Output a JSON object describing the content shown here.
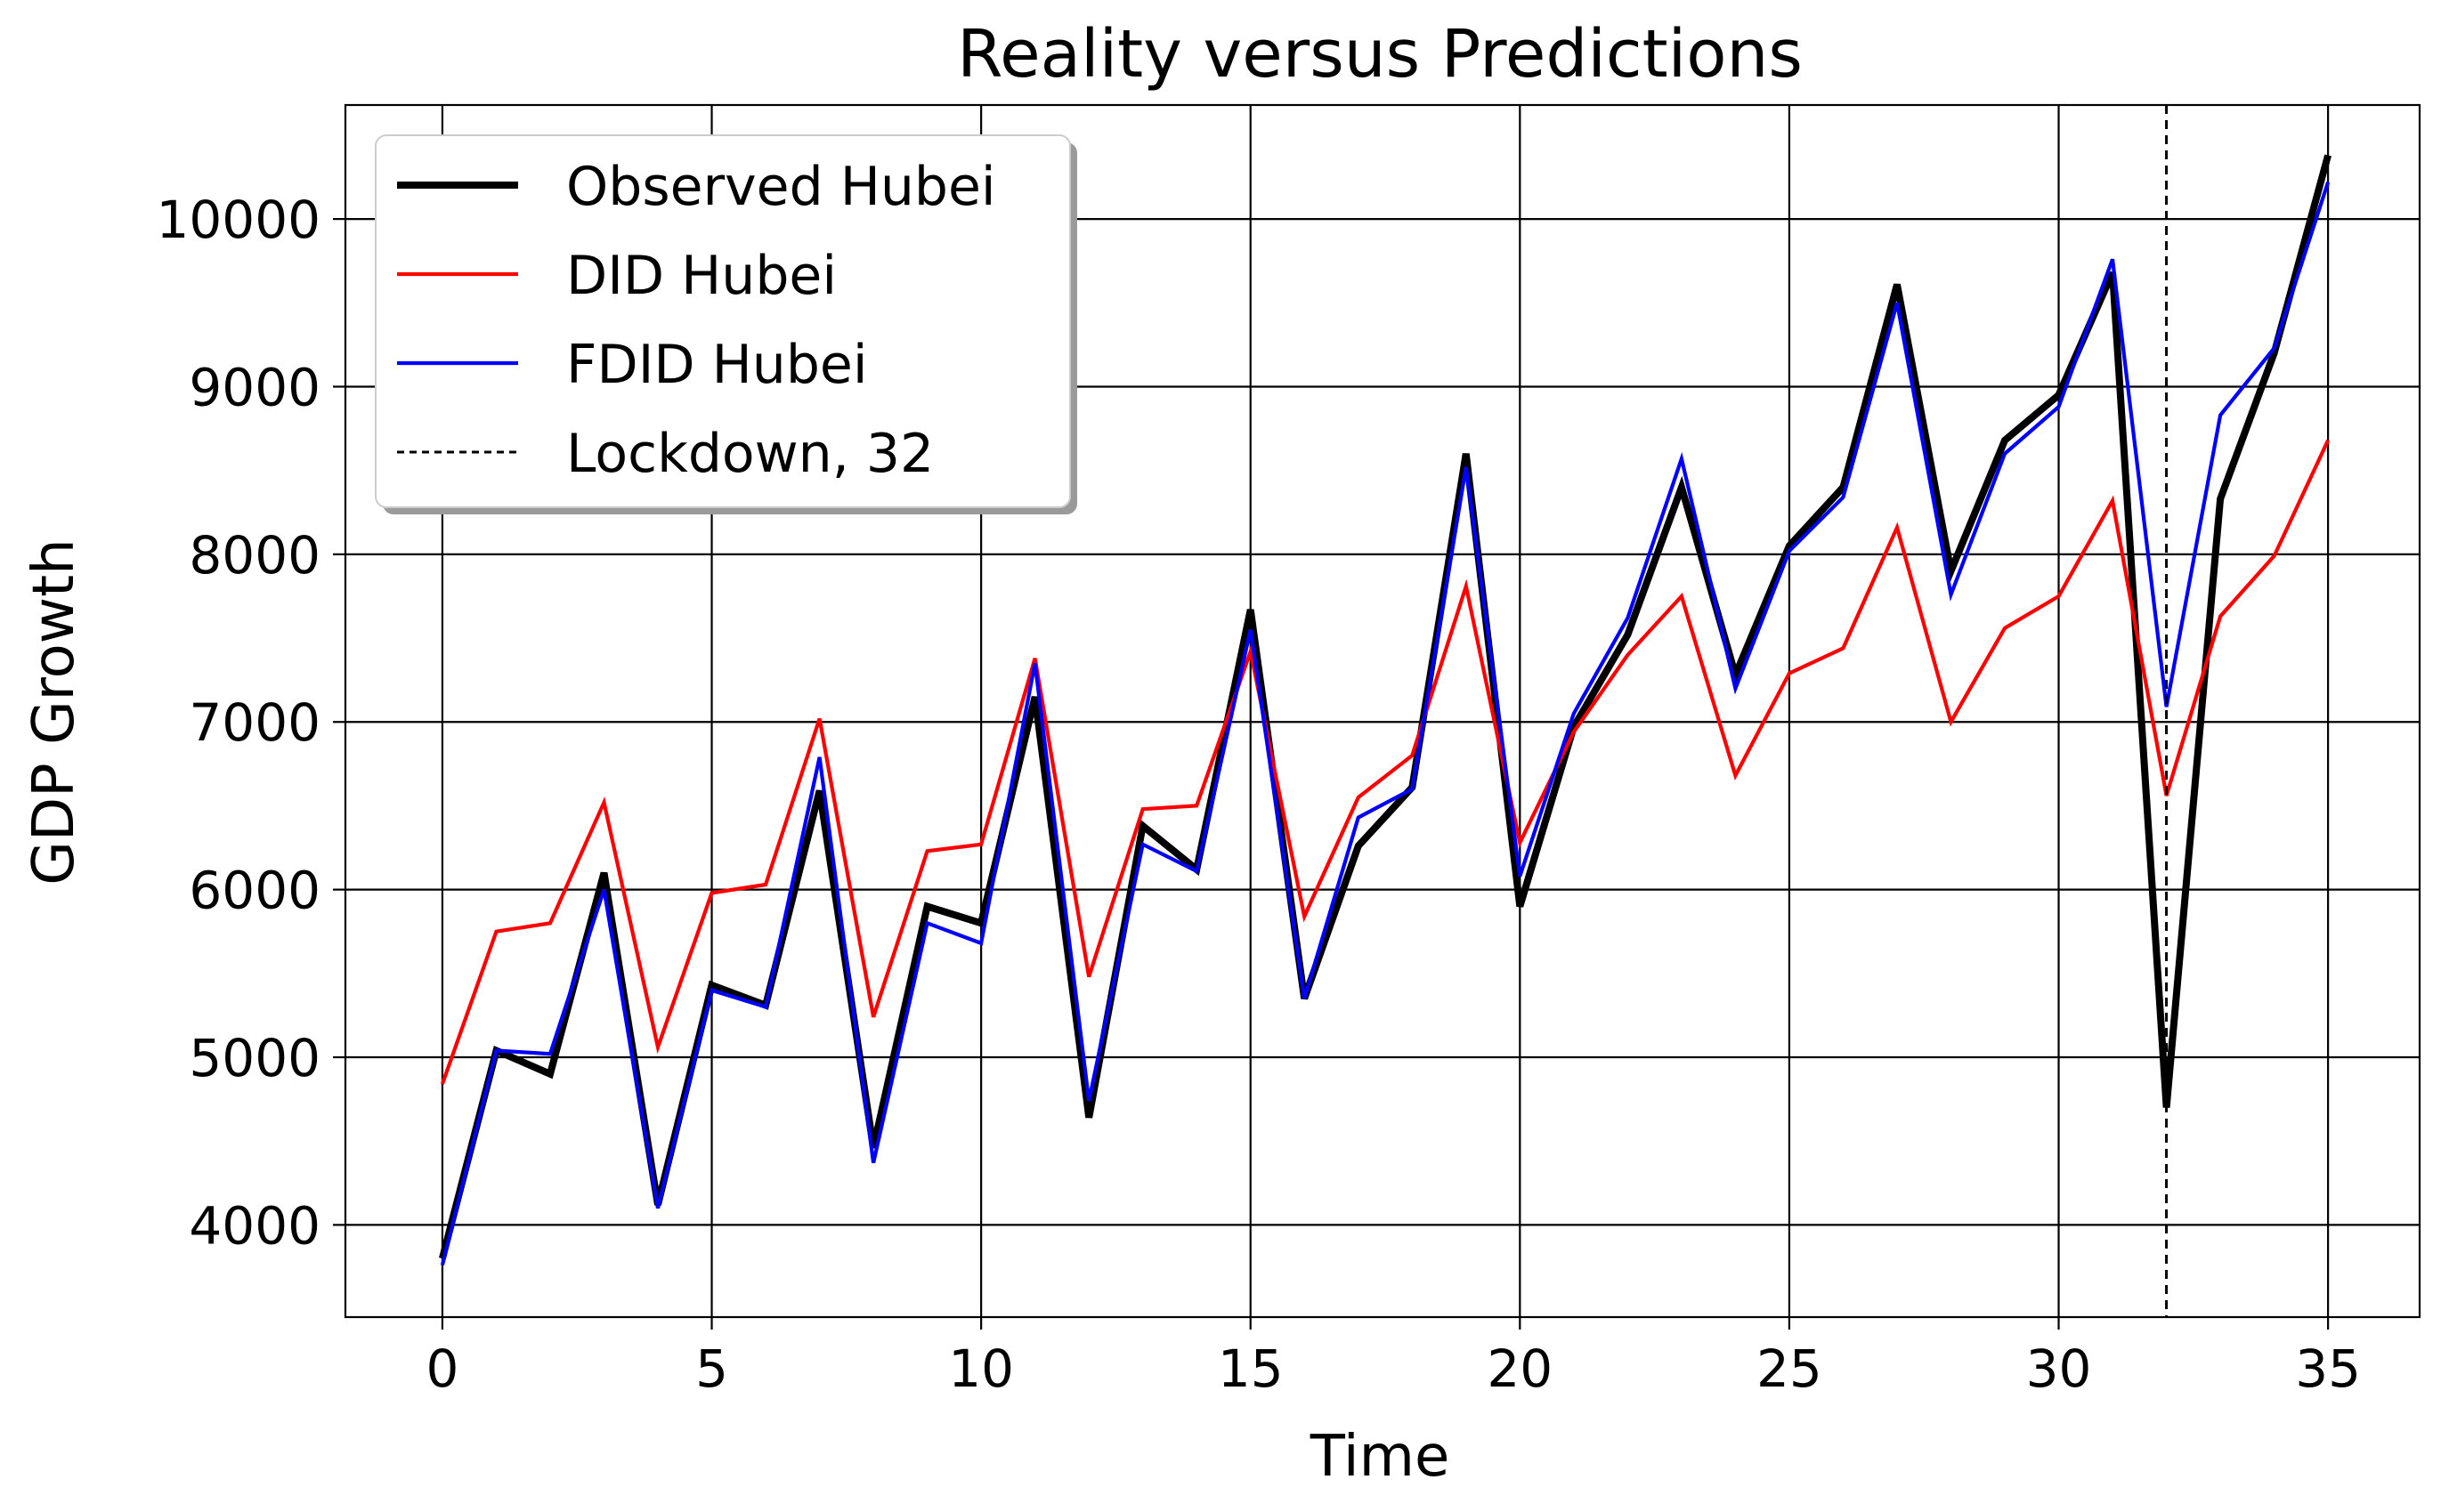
{
  "chart_data": {
    "type": "line",
    "title": "Reality versus Predictions",
    "xlabel": "Time",
    "ylabel": "GDP Growth",
    "xlim": [
      -1.8,
      36.7
    ],
    "ylim": [
      3450,
      10680
    ],
    "x_ticks": [
      0,
      5,
      10,
      15,
      20,
      25,
      30,
      35
    ],
    "y_ticks": [
      4000,
      5000,
      6000,
      7000,
      8000,
      9000,
      10000
    ],
    "grid": true,
    "legend_position": "top-left",
    "x": [
      0,
      1,
      2,
      3,
      4,
      5,
      6,
      7,
      8,
      9,
      10,
      11,
      12,
      13,
      14,
      15,
      16,
      17,
      18,
      19,
      20,
      21,
      22,
      23,
      24,
      25,
      26,
      27,
      28,
      29,
      30,
      31,
      32,
      33,
      34,
      35
    ],
    "series": [
      {
        "name": "Observed Hubei",
        "color": "#000000",
        "style": "solid-thick",
        "values": [
          3800,
          5040,
          4900,
          6100,
          4120,
          5430,
          5310,
          6590,
          4460,
          5900,
          5800,
          7150,
          4640,
          6380,
          6120,
          7670,
          5350,
          6260,
          6610,
          8600,
          5900,
          6970,
          7520,
          8400,
          7280,
          8050,
          8400,
          9610,
          7900,
          8680,
          8950,
          9680,
          4700,
          8330,
          9200,
          10380
        ]
      },
      {
        "name": "DID Hubei",
        "color": "#ff0000",
        "style": "solid",
        "values": [
          4840,
          5750,
          5800,
          6520,
          5060,
          5980,
          6030,
          7020,
          5240,
          6230,
          6270,
          7380,
          5480,
          6480,
          6500,
          7420,
          5840,
          6550,
          6800,
          7810,
          6280,
          6940,
          7400,
          7750,
          6680,
          7290,
          7440,
          8160,
          7000,
          7560,
          7750,
          8320,
          6560,
          7630,
          7990,
          8680
        ]
      },
      {
        "name": "FDID Hubei",
        "color": "#0000ff",
        "style": "solid",
        "values": [
          3760,
          5040,
          5020,
          6000,
          4100,
          5400,
          5300,
          6790,
          4370,
          5800,
          5680,
          7350,
          4740,
          6270,
          6110,
          7550,
          5350,
          6430,
          6600,
          8520,
          6080,
          7050,
          7620,
          8570,
          7200,
          8020,
          8340,
          9500,
          7760,
          8600,
          8880,
          9760,
          7090,
          8830,
          9230,
          10220
        ]
      }
    ],
    "vline": {
      "x": 32,
      "label": "Lockdown, 32",
      "color": "#000000",
      "style": "dashed"
    }
  }
}
